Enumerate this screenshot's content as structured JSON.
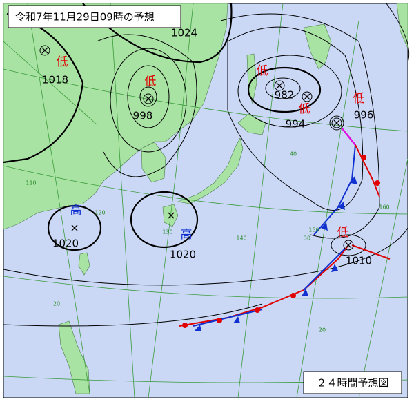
{
  "header": {
    "title": "令和7年11月29日09時の予想"
  },
  "footer": {
    "label": "２４時間予想図"
  },
  "pressure_systems": [
    {
      "type": "低",
      "pressure": 1018
    },
    {
      "type": "低",
      "pressure": 998
    },
    {
      "type": "低",
      "pressure": 982
    },
    {
      "type": "低",
      "pressure": 994
    },
    {
      "type": "低",
      "pressure": 996
    },
    {
      "type": "低",
      "pressure": 1010
    },
    {
      "type": "高",
      "pressure": 1020
    },
    {
      "type": "高",
      "pressure": 1020
    }
  ],
  "isobar_labels": [
    1024
  ],
  "grid_labels": [
    "110",
    "120",
    "130",
    "140",
    "150",
    "160",
    "40",
    "30",
    "20",
    "20"
  ]
}
